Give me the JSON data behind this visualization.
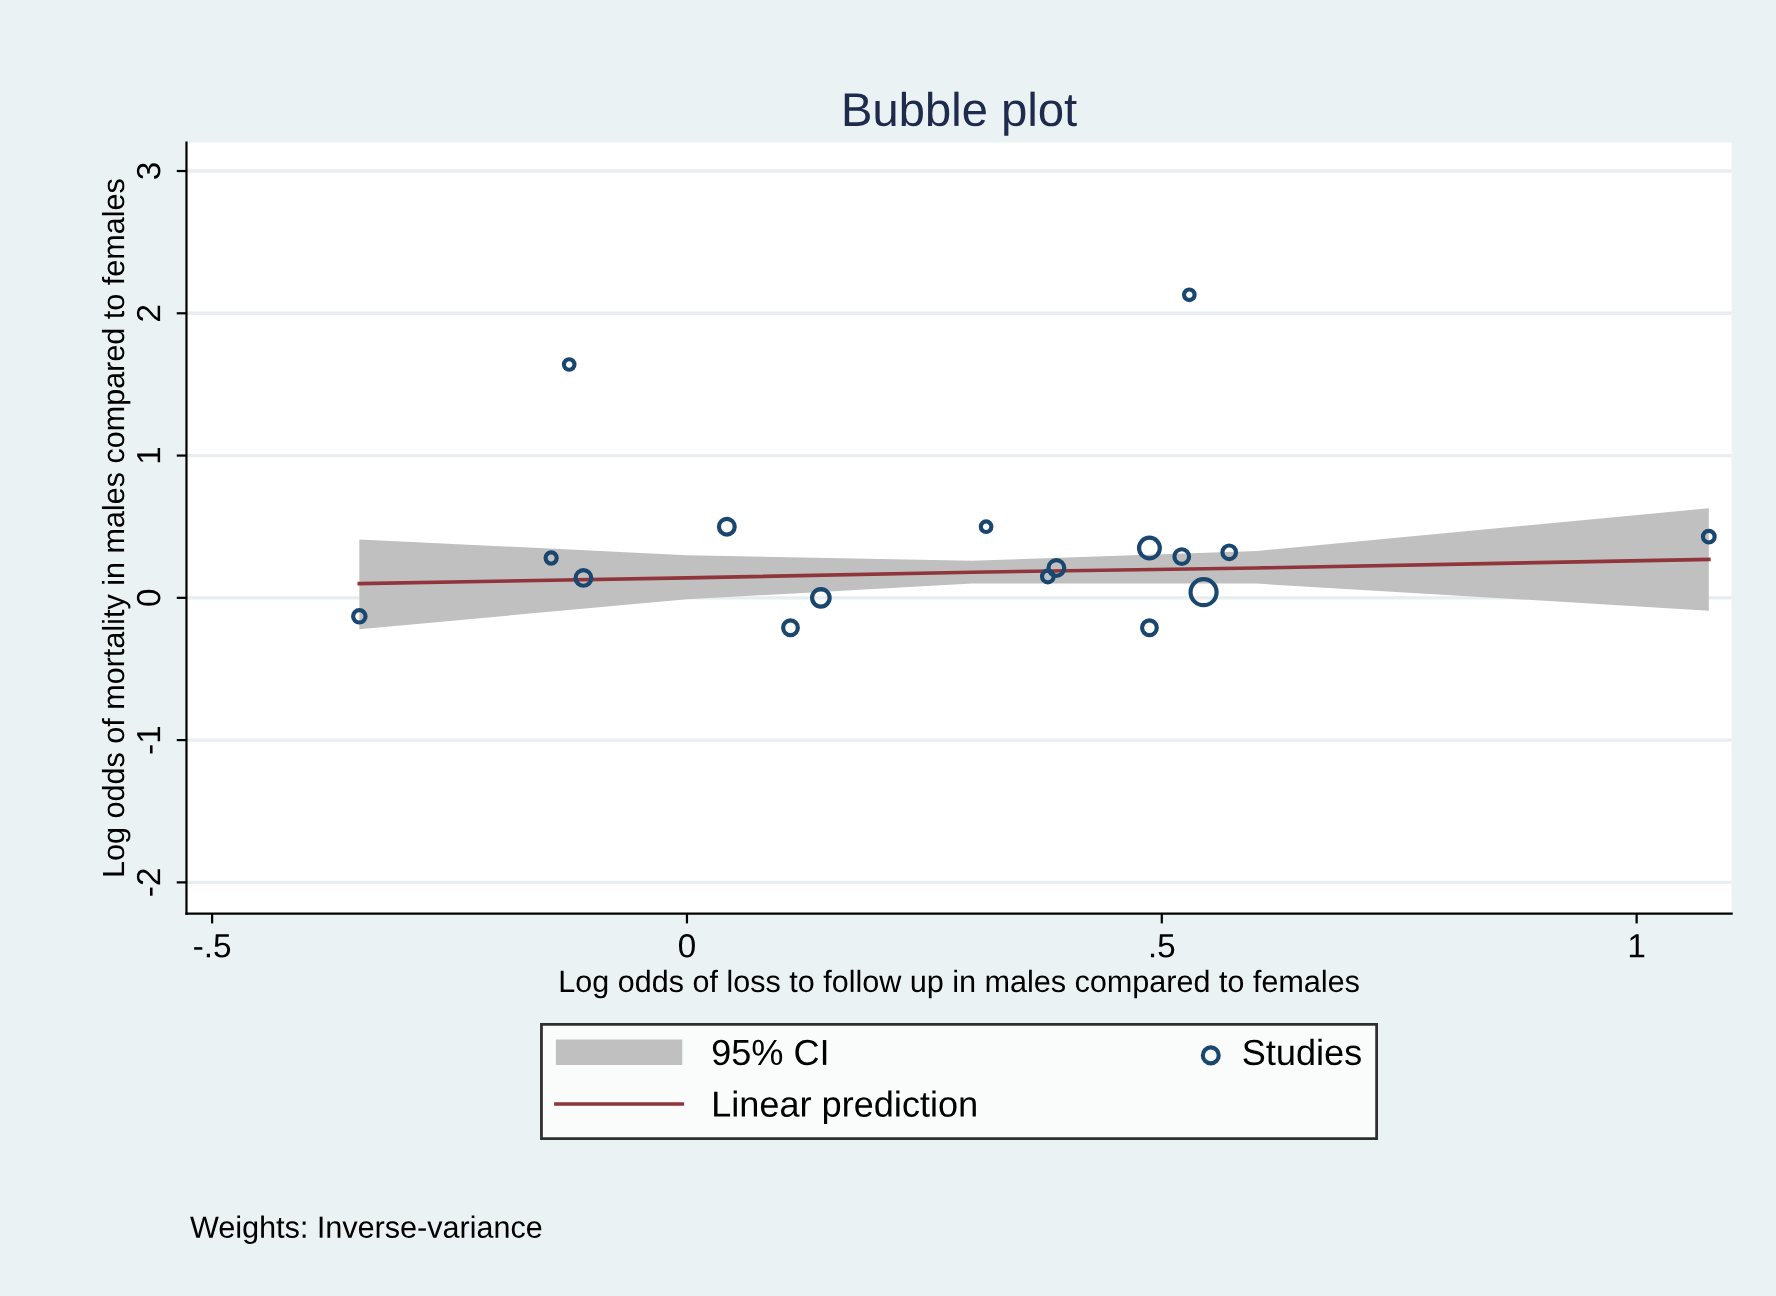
{
  "chart_data": {
    "type": "bubble",
    "title": "Bubble plot",
    "xlabel": "Log odds of loss to follow up in males compared to females",
    "ylabel": "Log odds of mortality in males compared to females",
    "series": [
      {
        "name": "Studies",
        "color": "#1a476f",
        "x": [
          -0.345,
          -0.143,
          -0.124,
          -0.109,
          0.042,
          0.109,
          0.141,
          0.315,
          0.38,
          0.389,
          0.487,
          0.487,
          0.521,
          0.529,
          0.544,
          0.571,
          1.076
        ],
        "values": [
          -0.13,
          0.28,
          1.64,
          0.14,
          0.5,
          -0.21,
          0.0,
          0.5,
          0.15,
          0.21,
          0.35,
          -0.21,
          0.29,
          2.13,
          0.04,
          0.32,
          0.43
        ],
        "sizes": [
          0.15,
          0.1,
          0.08,
          0.3,
          0.3,
          0.25,
          0.4,
          0.08,
          0.12,
          0.3,
          0.6,
          0.25,
          0.25,
          0.08,
          1.0,
          0.2,
          0.12
        ]
      },
      {
        "name": "Linear prediction",
        "type": "line",
        "color": "#90353b",
        "x": [
          -0.345,
          0.0,
          0.3,
          0.6,
          1.076
        ],
        "values": [
          0.1,
          0.14,
          0.18,
          0.21,
          0.27
        ],
        "lower": [
          -0.22,
          -0.01,
          0.1,
          0.1,
          -0.09
        ],
        "upper": [
          0.41,
          0.3,
          0.26,
          0.33,
          0.63
        ]
      }
    ],
    "xlim": [
      -0.527,
      1.1
    ],
    "xticks": [
      {
        "value": -0.5,
        "label": "-.5"
      },
      0,
      {
        "value": 0.5,
        "label": ".5"
      },
      1
    ],
    "ylim": [
      -2.22,
      3.2
    ],
    "yticks": [
      -2,
      -1,
      0,
      1,
      2,
      3
    ],
    "grid": "y",
    "legend": "bottom",
    "annotations": [
      "95% CI",
      "Weights: Inverse-variance"
    ]
  }
}
